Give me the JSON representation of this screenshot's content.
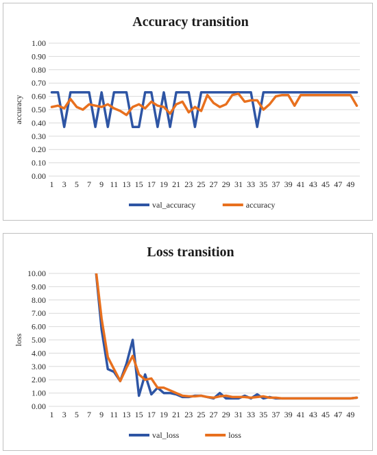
{
  "chart_data": [
    {
      "type": "line",
      "title": "Accuracy transition",
      "xlabel": "",
      "ylabel": "accuracy",
      "ylim": [
        0,
        1
      ],
      "yticks": [
        "0.00",
        "0.10",
        "0.20",
        "0.30",
        "0.40",
        "0.50",
        "0.60",
        "0.70",
        "0.80",
        "0.90",
        "1.00"
      ],
      "x": [
        1,
        2,
        3,
        4,
        5,
        6,
        7,
        8,
        9,
        10,
        11,
        12,
        13,
        14,
        15,
        16,
        17,
        18,
        19,
        20,
        21,
        22,
        23,
        24,
        25,
        26,
        27,
        28,
        29,
        30,
        31,
        32,
        33,
        34,
        35,
        36,
        37,
        38,
        39,
        40,
        41,
        42,
        43,
        44,
        45,
        46,
        47,
        48,
        49,
        50
      ],
      "xtick_labels": [
        "1",
        "3",
        "5",
        "7",
        "9",
        "11",
        "13",
        "15",
        "17",
        "19",
        "21",
        "23",
        "25",
        "27",
        "29",
        "31",
        "33",
        "35",
        "37",
        "39",
        "41",
        "43",
        "45",
        "47",
        "49"
      ],
      "grid": true,
      "legend_position": "bottom",
      "series": [
        {
          "name": "val_accuracy",
          "color": "#2e55a4",
          "values": [
            0.63,
            0.63,
            0.37,
            0.63,
            0.63,
            0.63,
            0.63,
            0.37,
            0.63,
            0.37,
            0.63,
            0.63,
            0.63,
            0.37,
            0.37,
            0.63,
            0.63,
            0.37,
            0.63,
            0.37,
            0.63,
            0.63,
            0.63,
            0.37,
            0.63,
            0.63,
            0.63,
            0.63,
            0.63,
            0.63,
            0.63,
            0.63,
            0.63,
            0.37,
            0.63,
            0.63,
            0.63,
            0.63,
            0.63,
            0.63,
            0.63,
            0.63,
            0.63,
            0.63,
            0.63,
            0.63,
            0.63,
            0.63,
            0.63,
            0.63
          ]
        },
        {
          "name": "accuracy",
          "color": "#e8701e",
          "values": [
            0.52,
            0.53,
            0.51,
            0.58,
            0.52,
            0.5,
            0.54,
            0.53,
            0.52,
            0.54,
            0.51,
            0.49,
            0.46,
            0.52,
            0.54,
            0.51,
            0.56,
            0.53,
            0.52,
            0.47,
            0.54,
            0.56,
            0.48,
            0.52,
            0.49,
            0.61,
            0.55,
            0.52,
            0.54,
            0.61,
            0.62,
            0.56,
            0.57,
            0.57,
            0.5,
            0.54,
            0.6,
            0.61,
            0.61,
            0.53,
            0.61,
            0.61,
            0.61,
            0.61,
            0.61,
            0.61,
            0.61,
            0.61,
            0.61,
            0.53
          ]
        }
      ]
    },
    {
      "type": "line",
      "title": "Loss transition",
      "xlabel": "",
      "ylabel": "loss",
      "ylim": [
        0,
        10
      ],
      "yticks": [
        "0.00",
        "1.00",
        "2.00",
        "3.00",
        "4.00",
        "5.00",
        "6.00",
        "7.00",
        "8.00",
        "9.00",
        "10.00"
      ],
      "x": [
        1,
        2,
        3,
        4,
        5,
        6,
        7,
        8,
        9,
        10,
        11,
        12,
        13,
        14,
        15,
        16,
        17,
        18,
        19,
        20,
        21,
        22,
        23,
        24,
        25,
        26,
        27,
        28,
        29,
        30,
        31,
        32,
        33,
        34,
        35,
        36,
        37,
        38,
        39,
        40,
        41,
        42,
        43,
        44,
        45,
        46,
        47,
        48,
        49,
        50
      ],
      "xtick_labels": [
        "1",
        "3",
        "5",
        "7",
        "9",
        "11",
        "13",
        "15",
        "17",
        "19",
        "21",
        "23",
        "25",
        "27",
        "29",
        "31",
        "33",
        "35",
        "37",
        "39",
        "41",
        "43",
        "45",
        "47",
        "49"
      ],
      "grid": true,
      "legend_position": "bottom",
      "series": [
        {
          "name": "val_loss",
          "color": "#2e55a4",
          "values": [
            null,
            null,
            null,
            null,
            null,
            null,
            null,
            10.0,
            5.8,
            2.8,
            2.6,
            1.9,
            3.2,
            5.0,
            0.8,
            2.4,
            0.9,
            1.4,
            1.0,
            1.0,
            0.9,
            0.7,
            0.7,
            0.8,
            0.8,
            0.7,
            0.6,
            1.0,
            0.6,
            0.6,
            0.6,
            0.8,
            0.6,
            0.9,
            0.6,
            0.7,
            0.6,
            0.6,
            0.6,
            0.6,
            0.6,
            0.6,
            0.6,
            0.6,
            0.6,
            0.6,
            0.6,
            0.6,
            0.6,
            0.65
          ]
        },
        {
          "name": "loss",
          "color": "#e8701e",
          "values": [
            null,
            null,
            null,
            null,
            null,
            null,
            null,
            10.0,
            6.6,
            3.7,
            2.8,
            1.9,
            2.9,
            3.8,
            2.4,
            2.0,
            2.1,
            1.4,
            1.4,
            1.2,
            1.0,
            0.8,
            0.75,
            0.75,
            0.8,
            0.7,
            0.65,
            0.75,
            0.8,
            0.7,
            0.7,
            0.7,
            0.65,
            0.7,
            0.75,
            0.65,
            0.65,
            0.6,
            0.6,
            0.6,
            0.6,
            0.6,
            0.6,
            0.6,
            0.6,
            0.6,
            0.6,
            0.6,
            0.6,
            0.65
          ]
        }
      ]
    }
  ]
}
